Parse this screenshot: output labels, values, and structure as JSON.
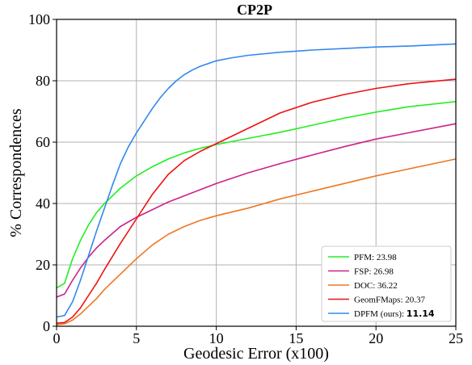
{
  "chart_data": {
    "type": "line",
    "title": "CP2P",
    "xlabel": "Geodesic Error (x100)",
    "ylabel": "% Correspondences",
    "xlim": [
      0,
      25
    ],
    "ylim": [
      0,
      100
    ],
    "xticks": [
      0,
      5,
      10,
      15,
      20,
      25
    ],
    "yticks": [
      0,
      20,
      40,
      60,
      80,
      100
    ],
    "grid": true,
    "legend_position": "bottom-right",
    "series": [
      {
        "name": "PFM: 23.98",
        "label_text": "PFM: 23.98",
        "label_bold": "",
        "color": "#22ee22",
        "x": [
          0,
          0.5,
          1,
          1.5,
          2,
          2.5,
          3,
          4,
          5,
          6,
          7,
          8,
          9,
          10,
          12,
          14,
          16,
          18,
          20,
          22,
          25
        ],
        "y": [
          12.5,
          14,
          22,
          28,
          33,
          37,
          40,
          45,
          49,
          52,
          54.5,
          56.5,
          58,
          59.2,
          61.2,
          63.2,
          65.5,
          67.8,
          69.8,
          71.5,
          73.2
        ]
      },
      {
        "name": "FSP: 26.98",
        "label_text": "FSP: 26.98",
        "label_bold": "",
        "color": "#cc2288",
        "x": [
          0,
          0.5,
          1,
          1.5,
          2,
          2.5,
          3,
          4,
          5,
          6,
          7,
          8,
          9,
          10,
          12,
          14,
          16,
          18,
          20,
          22,
          25
        ],
        "y": [
          9.5,
          10.5,
          15,
          19,
          22.5,
          25.5,
          28,
          32.5,
          35.5,
          38,
          40.5,
          42.5,
          44.5,
          46.5,
          50,
          53,
          55.8,
          58.5,
          61,
          63,
          66
        ]
      },
      {
        "name": "DOC: 36.22",
        "label_text": "DOC: 36.22",
        "label_bold": "",
        "color": "#ee7722",
        "x": [
          0,
          0.5,
          1,
          1.5,
          2,
          2.5,
          3,
          4,
          5,
          6,
          7,
          8,
          9,
          10,
          12,
          14,
          16,
          18,
          20,
          22,
          25
        ],
        "y": [
          0.5,
          0.8,
          2,
          4,
          6.5,
          9,
          12,
          17,
          22,
          26.5,
          30,
          32.5,
          34.5,
          36,
          38.5,
          41.5,
          44,
          46.5,
          49,
          51.2,
          54.5
        ]
      },
      {
        "name": "GeomFMaps: 20.37",
        "label_text": "GeomFMaps: 20.37",
        "label_bold": "",
        "color": "#ee1111",
        "x": [
          0,
          0.5,
          1,
          1.5,
          2,
          2.5,
          3,
          4,
          5,
          6,
          7,
          8,
          9,
          10,
          11,
          12,
          14,
          16,
          18,
          20,
          22,
          25
        ],
        "y": [
          1,
          1.2,
          3,
          6,
          10,
          14,
          18.5,
          27,
          35,
          43,
          49.5,
          54,
          57,
          59.5,
          62,
          64.5,
          69.5,
          73,
          75.5,
          77.5,
          79,
          80.5
        ]
      },
      {
        "name": "DPFM (ours): 11.14",
        "label_text": "DPFM (ours): ",
        "label_bold": "11.14",
        "color": "#3388ee",
        "x": [
          0,
          0.5,
          1,
          1.5,
          2,
          2.5,
          3,
          3.5,
          4,
          4.5,
          5,
          5.5,
          6,
          6.5,
          7,
          7.5,
          8,
          8.5,
          9,
          10,
          11,
          12,
          14,
          16,
          18,
          20,
          22,
          25
        ],
        "y": [
          3,
          3.5,
          8,
          15,
          23,
          31,
          38.5,
          46,
          53,
          58.5,
          63,
          67,
          71,
          74.5,
          77.5,
          80,
          82,
          83.5,
          84.7,
          86.5,
          87.5,
          88.3,
          89.3,
          90,
          90.5,
          91,
          91.3,
          92
        ]
      }
    ]
  }
}
